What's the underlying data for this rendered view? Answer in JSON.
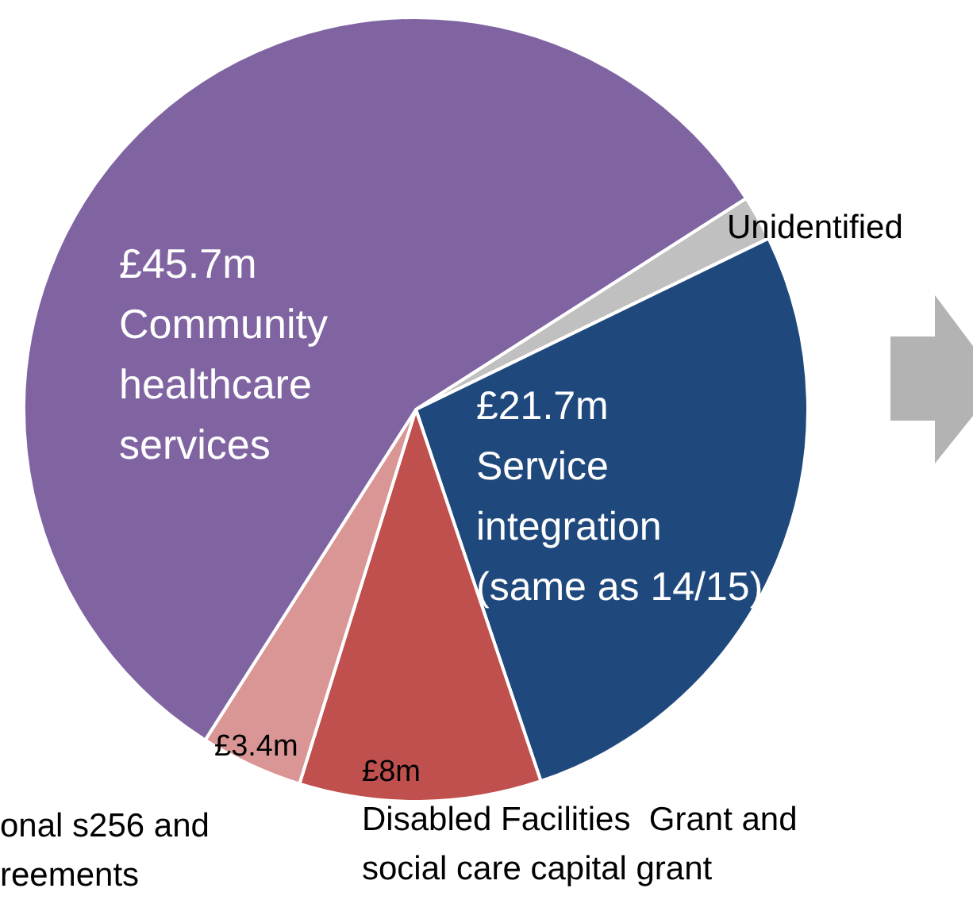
{
  "chart_data": {
    "type": "pie",
    "categories": [
      "Unidentified",
      "Service integration (same as 14/15)",
      "Disabled Facilities  Grant and social care capital grant",
      "onal s256 and reements",
      "Community healthcare services"
    ],
    "values": [
      1.5,
      21.7,
      8,
      3.4,
      45.7
    ],
    "colors": [
      "#c0c0c0",
      "#1f497d",
      "#c0504d",
      "#d99694",
      "#8064a2"
    ],
    "value_labels": [
      null,
      "£21.7m",
      "£8m",
      "£3.4m",
      "£45.7m"
    ],
    "legend": false
  }
}
